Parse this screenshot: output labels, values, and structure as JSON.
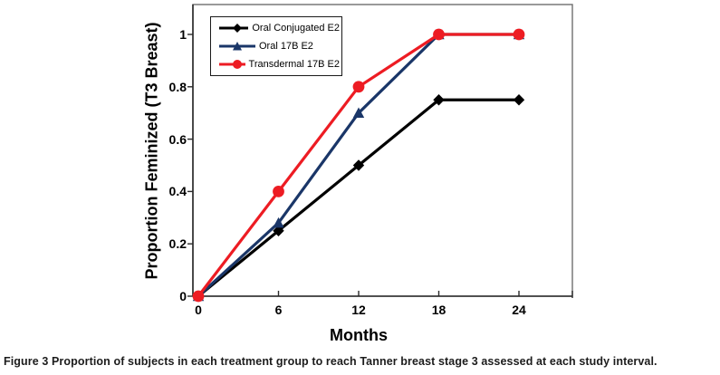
{
  "caption": {
    "label": "Figure 3",
    "text": "Proportion of subjects in each treatment group to reach Tanner breast stage 3 assessed at each study interval."
  },
  "chart_data": {
    "type": "line",
    "title": "",
    "xlabel": "Months",
    "ylabel": "Proportion Feminized (T3 Breast)",
    "x": [
      0,
      6,
      12,
      18,
      24
    ],
    "x_ticks": [
      0,
      6,
      12,
      18,
      24
    ],
    "y_ticks": [
      0,
      0.2,
      0.4,
      0.6,
      0.8,
      1
    ],
    "xlim": [
      0,
      28
    ],
    "ylim": [
      0,
      1.12
    ],
    "grid": false,
    "legend_position": "top-left-inside",
    "series": [
      {
        "name": "Oral Conjugated E2",
        "marker": "diamond",
        "color": "#000000",
        "values": [
          0,
          0.25,
          0.5,
          0.75,
          0.75
        ]
      },
      {
        "name": "Oral 17B E2",
        "marker": "triangle",
        "color": "#1A3668",
        "values": [
          0,
          0.28,
          0.7,
          1.0,
          1.0
        ]
      },
      {
        "name": "Transdermal 17B E2",
        "marker": "circle",
        "color": "#ED1C23",
        "values": [
          0,
          0.4,
          0.8,
          1.0,
          1.0
        ]
      }
    ]
  }
}
